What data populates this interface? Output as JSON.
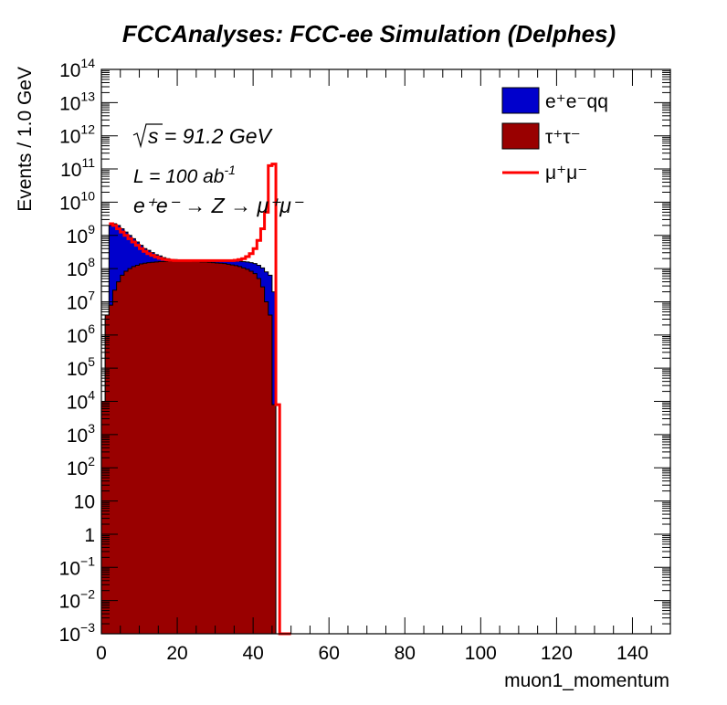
{
  "chart_data": {
    "type": "histogram",
    "title": "FCCAnalyses: FCC-ee Simulation (Delphes)",
    "xlabel": "muon1_momentum",
    "ylabel": "Events / 1.0 GeV",
    "xlim": [
      0,
      150
    ],
    "ylim": [
      0.001,
      100000000000000.0
    ],
    "yscale": "log",
    "bin_width": 1.0,
    "x_ticks": [
      "0",
      "20",
      "40",
      "60",
      "80",
      "100",
      "120",
      "140"
    ],
    "x_tick_values": [
      0,
      20,
      40,
      60,
      80,
      100,
      120,
      140
    ],
    "y_ticks": [
      {
        "exp": -3,
        "base": "10",
        "sup": "−3"
      },
      {
        "exp": -2,
        "base": "10",
        "sup": "−2"
      },
      {
        "exp": -1,
        "base": "10",
        "sup": "−1"
      },
      {
        "exp": 0,
        "base": "1",
        "sup": ""
      },
      {
        "exp": 1,
        "base": "10",
        "sup": ""
      },
      {
        "exp": 2,
        "base": "10",
        "sup": "2"
      },
      {
        "exp": 3,
        "base": "10",
        "sup": "3"
      },
      {
        "exp": 4,
        "base": "10",
        "sup": "4"
      },
      {
        "exp": 5,
        "base": "10",
        "sup": "5"
      },
      {
        "exp": 6,
        "base": "10",
        "sup": "6"
      },
      {
        "exp": 7,
        "base": "10",
        "sup": "7"
      },
      {
        "exp": 8,
        "base": "10",
        "sup": "8"
      },
      {
        "exp": 9,
        "base": "10",
        "sup": "9"
      },
      {
        "exp": 10,
        "base": "10",
        "sup": "10"
      },
      {
        "exp": 11,
        "base": "10",
        "sup": "11"
      },
      {
        "exp": 12,
        "base": "10",
        "sup": "12"
      },
      {
        "exp": 13,
        "base": "10",
        "sup": "13"
      },
      {
        "exp": 14,
        "base": "10",
        "sup": "14"
      }
    ],
    "annotations": {
      "sqrt_s": "s = 91.2 GeV",
      "lumi_prefix": "L = 100 ab",
      "lumi_sup": "-1",
      "process": "e⁺e⁻ → Z → μ⁺μ⁻"
    },
    "legend_position": "top-right",
    "series": [
      {
        "name": "e⁺e⁻qq",
        "legend_label": "e⁺e⁻qq",
        "style": "filled-stack-top",
        "color": "#0000cc",
        "x_edges": [
          0,
          46
        ],
        "bins_log10": [
          3.9,
          6.5,
          9.3,
          9.35,
          9.3,
          9.2,
          9.1,
          9.0,
          8.9,
          8.8,
          8.7,
          8.6,
          8.55,
          8.48,
          8.42,
          8.38,
          8.33,
          8.3,
          8.28,
          8.27,
          8.26,
          8.25,
          8.24,
          8.24,
          8.23,
          8.23,
          8.22,
          8.22,
          8.22,
          8.22,
          8.22,
          8.22,
          8.22,
          8.22,
          8.22,
          8.22,
          8.22,
          8.21,
          8.2,
          8.18,
          8.15,
          8.1,
          8.02,
          7.9,
          7.8,
          7.3
        ]
      },
      {
        "name": "τ⁺τ⁻",
        "legend_label": "τ⁺τ⁻",
        "style": "filled",
        "color": "#990000",
        "x_edges": [
          0,
          46
        ],
        "bins_log10": [
          4.0,
          6.6,
          6.9,
          7.35,
          7.6,
          7.8,
          7.92,
          8.0,
          8.06,
          8.1,
          8.14,
          8.16,
          8.18,
          8.19,
          8.2,
          8.21,
          8.21,
          8.22,
          8.22,
          8.22,
          8.22,
          8.22,
          8.22,
          8.22,
          8.21,
          8.21,
          8.2,
          8.2,
          8.19,
          8.18,
          8.17,
          8.16,
          8.15,
          8.13,
          8.11,
          8.09,
          8.06,
          8.02,
          7.98,
          7.92,
          7.85,
          7.7,
          7.45,
          7.0,
          6.6,
          3.9
        ]
      },
      {
        "name": "μ⁺μ⁻",
        "legend_label": "μ⁺μ⁻",
        "style": "line",
        "color": "#ff0000",
        "x_edges": [
          0,
          50
        ],
        "bins_log10": [
          null,
          null,
          9.35,
          9.3,
          9.2,
          9.1,
          9.0,
          8.9,
          8.8,
          8.7,
          8.6,
          8.52,
          8.45,
          8.4,
          8.35,
          8.31,
          8.28,
          8.26,
          8.25,
          8.24,
          8.24,
          8.24,
          8.24,
          8.24,
          8.24,
          8.24,
          8.24,
          8.24,
          8.24,
          8.24,
          8.24,
          8.24,
          8.24,
          8.24,
          8.24,
          8.25,
          8.27,
          8.3,
          8.36,
          8.45,
          8.6,
          8.85,
          9.2,
          9.7,
          11.1,
          11.15,
          3.9,
          -3.5,
          -3.5,
          -3.5
        ]
      }
    ]
  }
}
